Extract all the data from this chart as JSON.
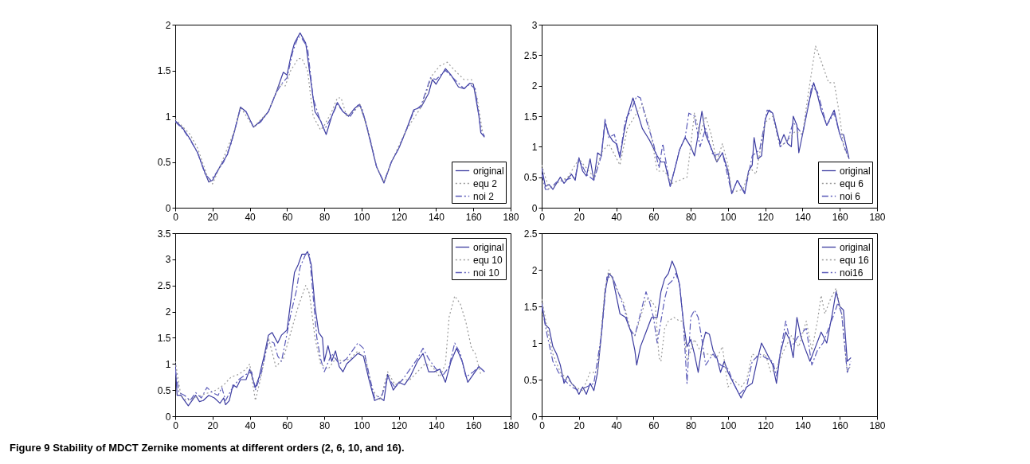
{
  "chart_data": [
    {
      "type": "line",
      "xlim": [
        0,
        180
      ],
      "xticks": [
        0,
        20,
        40,
        60,
        80,
        100,
        120,
        140,
        160,
        180
      ],
      "ylim": [
        0,
        2
      ],
      "yticks": [
        0,
        0.5,
        1,
        1.5,
        2
      ],
      "grid": false,
      "legend": "bottom right",
      "marker": "none",
      "series": [
        {
          "name": "original",
          "color": "#3c3ca0",
          "line_style": "solid",
          "x": [
            0,
            4,
            8,
            12,
            16,
            18,
            20,
            24,
            28,
            32,
            35,
            38,
            42,
            46,
            50,
            54,
            58,
            60,
            62,
            64,
            67,
            70,
            72,
            75,
            78,
            81,
            84,
            87,
            90,
            93,
            96,
            99,
            102,
            105,
            108,
            112,
            116,
            120,
            124,
            128,
            132,
            136,
            138,
            140,
            145,
            148,
            152,
            155,
            158,
            160,
            163,
            164,
            166
          ],
          "values": [
            0.95,
            0.87,
            0.75,
            0.6,
            0.38,
            0.28,
            0.3,
            0.45,
            0.58,
            0.85,
            1.1,
            1.05,
            0.88,
            0.95,
            1.05,
            1.25,
            1.48,
            1.45,
            1.65,
            1.8,
            1.91,
            1.8,
            1.5,
            1.05,
            0.95,
            0.8,
            1.0,
            1.15,
            1.05,
            1.0,
            1.08,
            1.13,
            0.95,
            0.7,
            0.45,
            0.27,
            0.5,
            0.65,
            0.85,
            1.07,
            1.1,
            1.25,
            1.4,
            1.35,
            1.52,
            1.45,
            1.32,
            1.3,
            1.36,
            1.35,
            1.0,
            0.82,
            0.77
          ]
        },
        {
          "name": "equ 2",
          "color": "#9a9a9a",
          "line_style": "dotted",
          "x": [
            0,
            8,
            12,
            18,
            20,
            24,
            32,
            35,
            42,
            50,
            56,
            59,
            62,
            66,
            68,
            71,
            74,
            78,
            80,
            84,
            87,
            89,
            92,
            96,
            99,
            104,
            108,
            112,
            116,
            124,
            132,
            138,
            142,
            146,
            150,
            155,
            159,
            162,
            165
          ],
          "values": [
            0.97,
            0.8,
            0.65,
            0.3,
            0.26,
            0.45,
            0.85,
            1.1,
            0.88,
            1.05,
            1.35,
            1.33,
            1.5,
            1.63,
            1.63,
            1.5,
            1.0,
            0.85,
            0.9,
            1.05,
            1.2,
            1.2,
            1.0,
            1.05,
            1.13,
            0.8,
            0.45,
            0.28,
            0.5,
            0.85,
            1.1,
            1.45,
            1.55,
            1.59,
            1.5,
            1.4,
            1.4,
            1.2,
            0.82
          ]
        },
        {
          "name": "noi 2",
          "color": "#5a5ab8",
          "line_style": "dashed",
          "x": [
            0,
            4,
            8,
            12,
            16,
            19,
            22,
            26,
            30,
            35,
            38,
            42,
            46,
            50,
            54,
            57,
            60,
            63,
            66,
            68,
            71,
            74,
            77,
            80,
            84,
            87,
            90,
            94,
            98,
            100,
            104,
            108,
            112,
            116,
            120,
            124,
            128,
            132,
            137,
            140,
            145,
            150,
            155,
            158,
            161,
            164,
            166
          ],
          "values": [
            0.94,
            0.86,
            0.74,
            0.6,
            0.37,
            0.3,
            0.38,
            0.5,
            0.7,
            1.09,
            1.05,
            0.88,
            0.94,
            1.05,
            1.25,
            1.35,
            1.42,
            1.7,
            1.87,
            1.85,
            1.75,
            1.2,
            1.0,
            0.85,
            1.0,
            1.13,
            1.05,
            1.0,
            1.12,
            1.1,
            0.8,
            0.45,
            0.28,
            0.5,
            0.65,
            0.85,
            1.05,
            1.12,
            1.42,
            1.4,
            1.5,
            1.4,
            1.3,
            1.35,
            1.3,
            0.85,
            0.78
          ]
        }
      ]
    },
    {
      "type": "line",
      "xlim": [
        0,
        180
      ],
      "xticks": [
        0,
        20,
        40,
        60,
        80,
        100,
        120,
        140,
        160,
        180
      ],
      "ylim": [
        0,
        3
      ],
      "yticks": [
        0,
        0.5,
        1,
        1.5,
        2,
        2.5,
        3
      ],
      "grid": false,
      "legend": "bottom right",
      "marker": "none",
      "series": [
        {
          "name": "original",
          "color": "#3c3ca0",
          "line_style": "solid",
          "x": [
            0,
            2,
            4,
            6,
            10,
            12,
            16,
            18,
            20,
            22,
            24,
            26,
            28,
            30,
            32,
            34,
            36,
            38,
            40,
            42,
            44,
            46,
            49,
            51,
            54,
            56,
            58,
            62,
            64,
            66,
            69,
            72,
            74,
            77,
            80,
            82,
            84,
            86,
            88,
            90,
            94,
            97,
            100,
            102,
            105,
            109,
            111,
            113,
            114,
            116,
            118,
            120,
            122,
            124,
            126,
            128,
            130,
            132,
            134,
            135,
            137,
            138,
            142,
            144,
            146,
            148,
            150,
            153,
            157,
            160,
            162,
            165
          ],
          "values": [
            0.65,
            0.35,
            0.38,
            0.3,
            0.5,
            0.4,
            0.55,
            0.45,
            0.82,
            0.6,
            0.52,
            0.8,
            0.45,
            0.9,
            0.85,
            1.4,
            1.2,
            1.1,
            1.05,
            0.82,
            1.2,
            1.5,
            1.8,
            1.6,
            1.3,
            1.2,
            1.1,
            0.85,
            0.75,
            0.75,
            0.35,
            0.7,
            0.95,
            1.15,
            1.0,
            0.85,
            1.2,
            1.58,
            1.2,
            1.05,
            0.75,
            0.9,
            0.6,
            0.23,
            0.45,
            0.23,
            0.6,
            0.7,
            1.15,
            0.8,
            0.85,
            1.45,
            1.6,
            1.55,
            1.3,
            1.05,
            1.2,
            1.05,
            1.0,
            1.5,
            1.35,
            0.9,
            1.5,
            1.8,
            2.05,
            1.85,
            1.6,
            1.35,
            1.6,
            1.2,
            1.2,
            0.8
          ]
        },
        {
          "name": "equ 6",
          "color": "#9a9a9a",
          "line_style": "dotted",
          "x": [
            0,
            4,
            8,
            14,
            20,
            28,
            32,
            36,
            42,
            46,
            50,
            54,
            58,
            62,
            66,
            70,
            74,
            78,
            82,
            85,
            88,
            91,
            94,
            97,
            100,
            102,
            108,
            112,
            115,
            120,
            124,
            128,
            132,
            136,
            140,
            143,
            147,
            150,
            154,
            157,
            160,
            162,
            165
          ],
          "values": [
            0.7,
            0.3,
            0.4,
            0.5,
            0.8,
            0.5,
            0.9,
            1.05,
            0.7,
            1.3,
            1.5,
            1.7,
            1.3,
            0.6,
            0.6,
            0.4,
            0.45,
            0.5,
            1.55,
            1.2,
            1.5,
            1.2,
            0.75,
            1.05,
            0.7,
            0.25,
            0.3,
            0.65,
            0.55,
            1.4,
            1.5,
            1.0,
            1.1,
            1.25,
            1.2,
            1.85,
            2.65,
            2.4,
            2.05,
            2.05,
            1.5,
            1.0,
            0.8
          ]
        },
        {
          "name": "noi 6",
          "color": "#5a5ab8",
          "line_style": "dashed",
          "x": [
            0,
            2,
            4,
            8,
            12,
            18,
            20,
            24,
            28,
            32,
            34,
            36,
            39,
            42,
            45,
            48,
            51,
            53,
            56,
            60,
            63,
            65,
            67,
            69,
            74,
            77,
            79,
            82,
            85,
            88,
            92,
            97,
            102,
            105,
            109,
            113,
            117,
            121,
            124,
            128,
            132,
            135,
            140,
            145,
            148,
            153,
            157,
            160,
            165
          ],
          "values": [
            0.55,
            0.3,
            0.3,
            0.42,
            0.45,
            0.5,
            0.8,
            0.55,
            0.45,
            0.85,
            1.45,
            1.15,
            1.2,
            0.85,
            1.45,
            1.6,
            1.83,
            1.8,
            1.45,
            1.05,
            0.65,
            1.05,
            0.7,
            0.35,
            0.95,
            1.15,
            1.55,
            1.5,
            1.0,
            1.3,
            0.85,
            0.9,
            0.23,
            0.45,
            0.25,
            0.85,
            0.95,
            1.6,
            1.55,
            1.0,
            1.1,
            1.4,
            1.2,
            2.0,
            1.9,
            1.35,
            1.55,
            1.2,
            0.8
          ]
        }
      ]
    },
    {
      "type": "line",
      "xlim": [
        0,
        180
      ],
      "xticks": [
        0,
        20,
        40,
        60,
        80,
        100,
        120,
        140,
        160,
        180
      ],
      "ylim": [
        0,
        3.5
      ],
      "yticks": [
        0,
        0.5,
        1,
        1.5,
        2,
        2.5,
        3,
        3.5
      ],
      "grid": false,
      "legend": "top right",
      "marker": "none",
      "series": [
        {
          "name": "original",
          "color": "#3c3ca0",
          "line_style": "solid",
          "x": [
            0,
            1,
            3,
            5,
            7,
            9,
            11,
            13,
            15,
            18,
            21,
            24,
            26,
            27,
            29,
            31,
            33,
            35,
            38,
            40,
            43,
            45,
            48,
            50,
            52,
            55,
            57,
            60,
            62,
            64,
            66,
            68,
            70,
            71,
            73,
            75,
            77,
            79,
            80,
            82,
            84,
            86,
            88,
            90,
            92,
            95,
            98,
            101,
            104,
            107,
            110,
            112,
            114,
            117,
            120,
            123,
            126,
            130,
            133,
            136,
            139,
            142,
            145,
            148,
            151,
            154,
            157,
            160,
            163,
            166
          ],
          "values": [
            1.0,
            0.4,
            0.4,
            0.3,
            0.2,
            0.3,
            0.4,
            0.28,
            0.3,
            0.4,
            0.35,
            0.25,
            0.35,
            0.22,
            0.3,
            0.6,
            0.55,
            0.7,
            0.7,
            0.9,
            0.55,
            0.75,
            1.2,
            1.55,
            1.6,
            1.4,
            1.55,
            1.65,
            2.2,
            2.75,
            2.9,
            3.1,
            3.1,
            3.15,
            2.9,
            2.1,
            1.6,
            1.5,
            1.05,
            1.35,
            1.05,
            1.25,
            0.95,
            0.85,
            1.0,
            1.1,
            1.2,
            1.15,
            0.7,
            0.3,
            0.35,
            0.3,
            0.8,
            0.5,
            0.65,
            0.6,
            0.75,
            1.05,
            1.2,
            0.85,
            0.85,
            0.9,
            0.65,
            1.05,
            1.3,
            1.05,
            0.65,
            0.8,
            0.95,
            0.85
          ]
        },
        {
          "name": "equ 10",
          "color": "#9a9a9a",
          "line_style": "dotted",
          "x": [
            0,
            3,
            6,
            10,
            14,
            18,
            22,
            26,
            30,
            34,
            38,
            40,
            43,
            46,
            50,
            54,
            58,
            62,
            66,
            70,
            72,
            75,
            78,
            82,
            86,
            90,
            94,
            98,
            102,
            106,
            110,
            114,
            118,
            122,
            126,
            130,
            134,
            138,
            142,
            145,
            147,
            150,
            153,
            156,
            159,
            161,
            164
          ],
          "values": [
            1.05,
            0.4,
            0.3,
            0.35,
            0.4,
            0.45,
            0.5,
            0.6,
            0.75,
            0.8,
            0.9,
            1.0,
            0.3,
            0.75,
            1.5,
            0.95,
            1.1,
            1.6,
            2.1,
            2.5,
            2.35,
            1.5,
            1.0,
            0.9,
            1.1,
            1.05,
            1.1,
            1.25,
            1.1,
            0.5,
            0.3,
            0.85,
            0.6,
            0.7,
            0.7,
            0.85,
            1.0,
            0.95,
            0.75,
            1.0,
            1.9,
            2.3,
            2.15,
            1.8,
            1.3,
            1.2,
            0.8
          ]
        },
        {
          "name": "noi 10",
          "color": "#5a5ab8",
          "line_style": "dashed",
          "x": [
            0,
            2,
            5,
            8,
            11,
            14,
            17,
            20,
            23,
            25,
            27,
            30,
            34,
            38,
            41,
            43,
            46,
            50,
            53,
            55,
            57,
            59,
            62,
            65,
            67,
            70,
            72,
            74,
            76,
            78,
            80,
            84,
            88,
            92,
            96,
            98,
            101,
            104,
            107,
            111,
            114,
            118,
            122,
            126,
            130,
            133,
            136,
            140,
            144,
            147,
            150,
            153,
            156,
            160,
            163,
            166
          ],
          "values": [
            0.9,
            0.45,
            0.4,
            0.3,
            0.45,
            0.35,
            0.55,
            0.45,
            0.4,
            0.55,
            0.3,
            0.5,
            0.7,
            0.8,
            0.85,
            0.5,
            0.8,
            1.45,
            1.4,
            1.15,
            1.05,
            1.4,
            1.95,
            2.4,
            2.85,
            3.1,
            3.1,
            2.3,
            1.5,
            1.1,
            0.85,
            1.2,
            1.0,
            1.1,
            1.3,
            1.4,
            1.3,
            0.8,
            0.35,
            0.4,
            0.75,
            0.55,
            0.7,
            0.9,
            1.1,
            1.3,
            1.1,
            0.9,
            0.8,
            0.95,
            1.4,
            1.2,
            0.75,
            0.85,
            0.95,
            0.85
          ]
        }
      ]
    },
    {
      "type": "line",
      "xlim": [
        0,
        180
      ],
      "xticks": [
        0,
        20,
        40,
        60,
        80,
        100,
        120,
        140,
        160,
        180
      ],
      "ylim": [
        0,
        2.5
      ],
      "yticks": [
        0,
        0.5,
        1,
        1.5,
        2,
        2.5
      ],
      "grid": false,
      "legend": "top right",
      "marker": "none",
      "annotations": [
        "Figure 9 Stability of MDCT Zernike moments at different orders (2, 6, 10, and 16)."
      ],
      "series": [
        {
          "name": "original",
          "color": "#3c3ca0",
          "line_style": "solid",
          "x": [
            0,
            2,
            4,
            6,
            8,
            10,
            12,
            14,
            16,
            18,
            20,
            22,
            24,
            26,
            28,
            30,
            32,
            34,
            36,
            38,
            40,
            42,
            45,
            48,
            50,
            51,
            53,
            56,
            59,
            62,
            64,
            66,
            68,
            70,
            72,
            74,
            76,
            78,
            80,
            82,
            84,
            86,
            88,
            90,
            92,
            94,
            96,
            98,
            100,
            102,
            104,
            107,
            110,
            113,
            116,
            118,
            121,
            124,
            126,
            128,
            131,
            133,
            135,
            137,
            139,
            141,
            144,
            147,
            150,
            153,
            156,
            158,
            160,
            162,
            164,
            166
          ],
          "values": [
            1.55,
            1.25,
            1.2,
            0.95,
            0.85,
            0.7,
            0.45,
            0.55,
            0.45,
            0.4,
            0.3,
            0.4,
            0.3,
            0.45,
            0.35,
            0.6,
            1.1,
            1.7,
            1.95,
            1.9,
            1.65,
            1.4,
            1.35,
            1.15,
            0.9,
            0.7,
            0.95,
            1.15,
            1.35,
            1.35,
            1.7,
            1.88,
            1.95,
            2.12,
            2.0,
            1.8,
            1.3,
            0.95,
            1.05,
            0.85,
            0.6,
            0.95,
            1.15,
            1.12,
            0.9,
            0.8,
            0.6,
            0.75,
            0.6,
            0.5,
            0.4,
            0.25,
            0.4,
            0.45,
            0.8,
            1.0,
            0.85,
            0.7,
            0.45,
            0.85,
            1.15,
            1.05,
            0.8,
            1.35,
            1.1,
            0.95,
            0.75,
            0.95,
            1.15,
            1.0,
            1.4,
            1.7,
            1.5,
            1.45,
            0.75,
            0.8
          ]
        },
        {
          "name": "equ 16",
          "color": "#9a9a9a",
          "line_style": "dotted",
          "x": [
            0,
            3,
            6,
            10,
            14,
            18,
            22,
            26,
            30,
            34,
            36,
            40,
            44,
            48,
            50,
            53,
            56,
            58,
            61,
            63,
            64,
            66,
            68,
            71,
            74,
            76,
            78,
            82,
            86,
            90,
            94,
            97,
            100,
            103,
            107,
            110,
            113,
            117,
            120,
            123,
            126,
            130,
            134,
            138,
            142,
            145,
            148,
            150,
            152,
            155,
            158,
            161,
            164,
            166
          ],
          "values": [
            1.6,
            1.2,
            0.85,
            0.6,
            0.5,
            0.4,
            0.35,
            0.6,
            0.6,
            1.75,
            2.0,
            1.75,
            1.55,
            1.15,
            1.1,
            1.35,
            1.6,
            1.6,
            1.5,
            0.8,
            0.75,
            1.2,
            1.3,
            1.35,
            1.3,
            1.3,
            0.75,
            1.05,
            0.85,
            0.85,
            0.8,
            0.95,
            0.4,
            0.5,
            0.4,
            0.5,
            0.85,
            0.8,
            0.85,
            0.6,
            0.65,
            0.9,
            1.1,
            0.95,
            1.3,
            0.9,
            1.3,
            1.65,
            1.4,
            1.6,
            1.75,
            1.4,
            0.6,
            0.7
          ]
        },
        {
          "name": "noi16",
          "color": "#5a5ab8",
          "line_style": "dashed",
          "x": [
            0,
            3,
            6,
            9,
            12,
            16,
            20,
            24,
            28,
            32,
            35,
            38,
            41,
            44,
            47,
            50,
            53,
            56,
            58,
            60,
            62,
            64,
            66,
            68,
            70,
            72,
            74,
            76,
            78,
            80,
            82,
            84,
            86,
            88,
            92,
            96,
            100,
            103,
            106,
            110,
            113,
            117,
            120,
            124,
            126,
            128,
            131,
            134,
            138,
            142,
            145,
            148,
            151,
            154,
            157,
            159,
            161,
            164,
            166
          ],
          "values": [
            1.5,
            1.1,
            0.75,
            0.6,
            0.5,
            0.4,
            0.35,
            0.4,
            0.45,
            1.1,
            1.9,
            1.9,
            1.7,
            1.5,
            1.2,
            1.1,
            1.4,
            1.7,
            1.55,
            1.35,
            1.0,
            1.3,
            1.6,
            1.8,
            1.85,
            1.95,
            1.8,
            1.3,
            0.45,
            1.35,
            1.45,
            1.35,
            1.05,
            0.7,
            0.85,
            0.7,
            0.65,
            0.45,
            0.3,
            0.4,
            0.75,
            0.85,
            0.8,
            0.75,
            0.55,
            0.85,
            1.3,
            0.95,
            1.1,
            1.2,
            0.7,
            0.9,
            1.0,
            1.2,
            1.4,
            1.55,
            1.4,
            0.6,
            0.75
          ]
        }
      ]
    }
  ]
}
